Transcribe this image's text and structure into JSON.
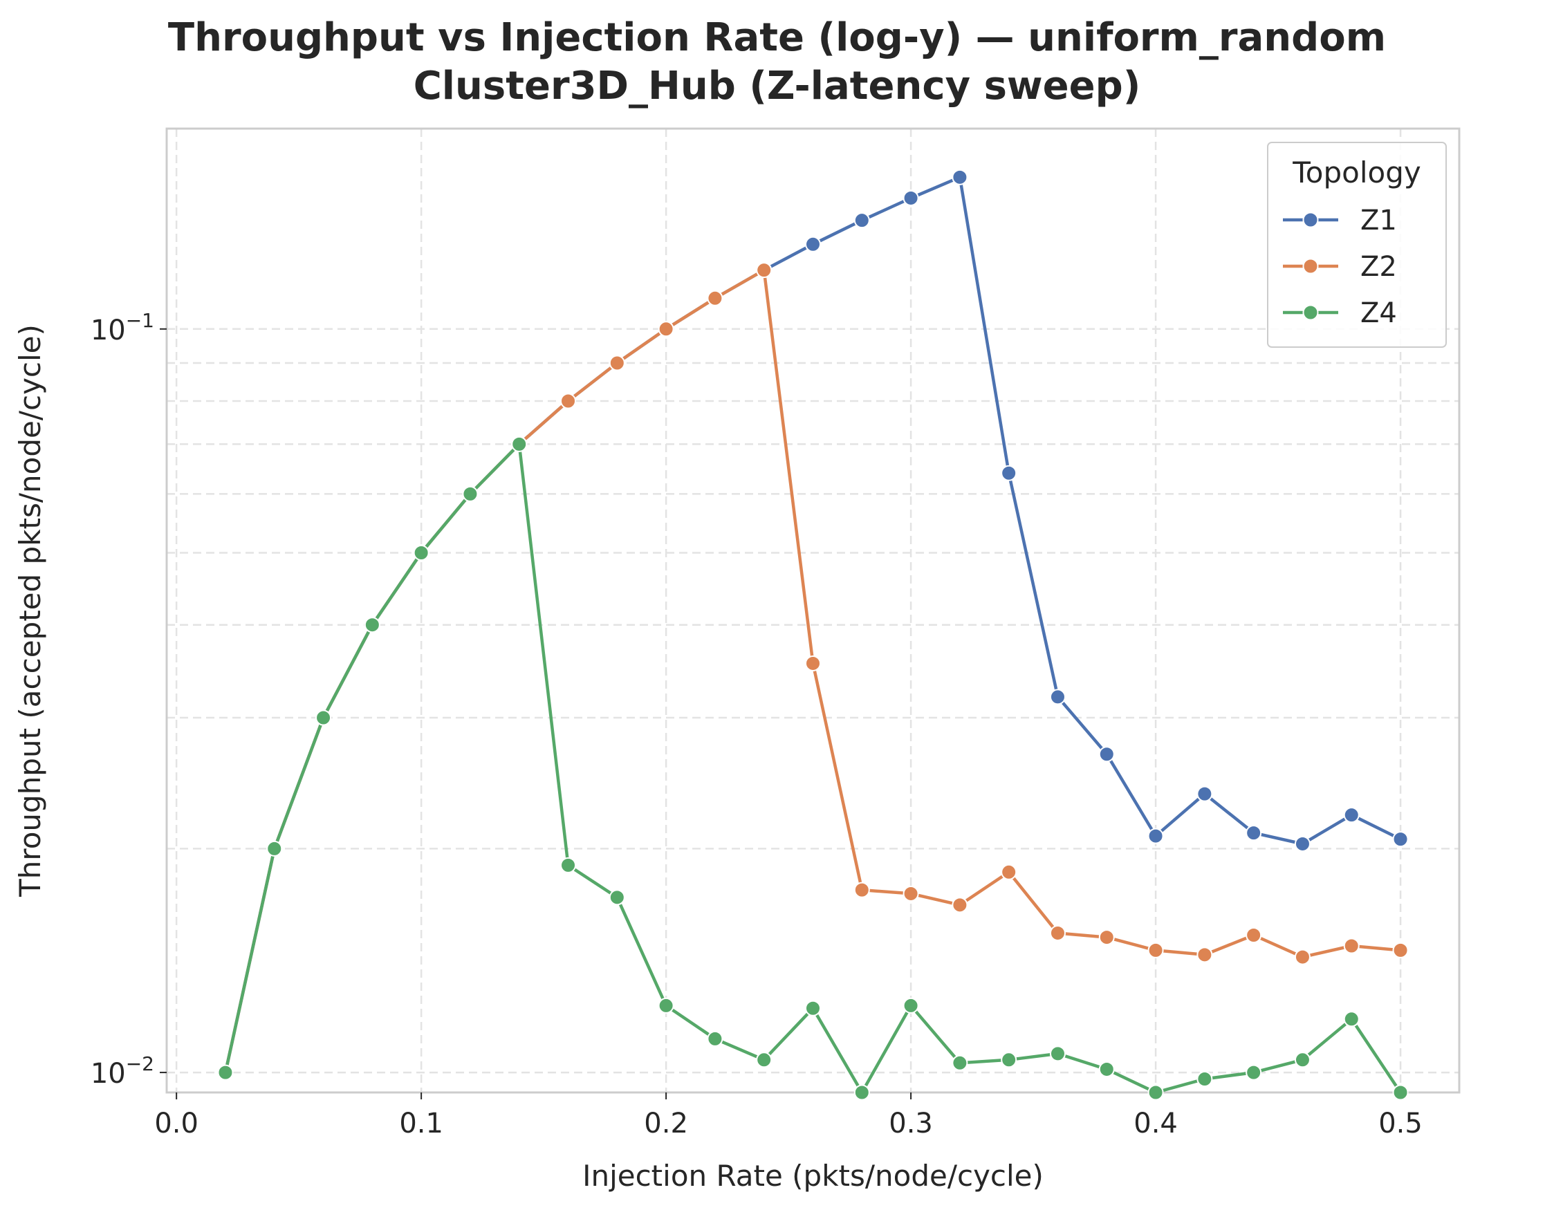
{
  "chart_data": {
    "type": "line",
    "title_lines": [
      "Throughput vs Injection Rate (log-y) — uniform_random",
      "Cluster3D_Hub (Z-latency sweep)"
    ],
    "xlabel": "Injection Rate (pkts/node/cycle)",
    "ylabel": "Throughput (accepted pkts/node/cycle)",
    "yscale": "log",
    "xlim": [
      -0.004,
      0.524
    ],
    "ylim": [
      0.0094,
      0.186
    ],
    "x_ticks": [
      0.0,
      0.1,
      0.2,
      0.3,
      0.4,
      0.5
    ],
    "x_tick_labels": [
      "0.0",
      "0.1",
      "0.2",
      "0.3",
      "0.4",
      "0.5"
    ],
    "y_major_ticks": [
      0.01,
      0.1
    ],
    "y_tick_labels": [
      {
        "base": "10",
        "exp": "−2"
      },
      {
        "base": "10",
        "exp": "−1"
      }
    ],
    "y_minor_ticks": [
      0.02,
      0.03,
      0.04,
      0.05,
      0.06,
      0.07,
      0.08,
      0.09
    ],
    "grid": true,
    "legend": {
      "title": "Topology",
      "placement": "top-right"
    },
    "series": [
      {
        "name": "Z1",
        "color": "#4c72b0",
        "x": [
          0.02,
          0.04,
          0.06,
          0.08,
          0.1,
          0.12,
          0.14,
          0.16,
          0.18,
          0.2,
          0.22,
          0.24,
          0.26,
          0.28,
          0.3,
          0.32,
          0.34,
          0.36,
          0.38,
          0.4,
          0.42,
          0.44,
          0.46,
          0.48,
          0.5
        ],
        "y": [
          0.01,
          0.02,
          0.03,
          0.04,
          0.05,
          0.06,
          0.07,
          0.08,
          0.09,
          0.1,
          0.11,
          0.12,
          0.13,
          0.14,
          0.15,
          0.16,
          0.064,
          0.032,
          0.0268,
          0.0208,
          0.0237,
          0.021,
          0.0203,
          0.0222,
          0.0206
        ]
      },
      {
        "name": "Z2",
        "color": "#dd8452",
        "x": [
          0.02,
          0.04,
          0.06,
          0.08,
          0.1,
          0.12,
          0.14,
          0.16,
          0.18,
          0.2,
          0.22,
          0.24,
          0.26,
          0.28,
          0.3,
          0.32,
          0.34,
          0.36,
          0.38,
          0.4,
          0.42,
          0.44,
          0.46,
          0.48,
          0.5
        ],
        "y": [
          0.01,
          0.02,
          0.03,
          0.04,
          0.05,
          0.06,
          0.07,
          0.08,
          0.09,
          0.1,
          0.11,
          0.12,
          0.0355,
          0.0176,
          0.0174,
          0.0168,
          0.0186,
          0.0154,
          0.0152,
          0.0146,
          0.0144,
          0.0153,
          0.0143,
          0.0148,
          0.0146
        ]
      },
      {
        "name": "Z4",
        "color": "#55a868",
        "x": [
          0.02,
          0.04,
          0.06,
          0.08,
          0.1,
          0.12,
          0.14,
          0.16,
          0.18,
          0.2,
          0.22,
          0.24,
          0.26,
          0.28,
          0.3,
          0.32,
          0.34,
          0.36,
          0.38,
          0.4,
          0.42,
          0.44,
          0.46,
          0.48,
          0.5
        ],
        "y": [
          0.01,
          0.02,
          0.03,
          0.04,
          0.05,
          0.06,
          0.07,
          0.019,
          0.0172,
          0.0123,
          0.0111,
          0.0104,
          0.0122,
          0.0094,
          0.0123,
          0.0103,
          0.0104,
          0.0106,
          0.0101,
          0.0094,
          0.0098,
          0.01,
          0.0104,
          0.0118,
          0.0094
        ]
      }
    ]
  }
}
